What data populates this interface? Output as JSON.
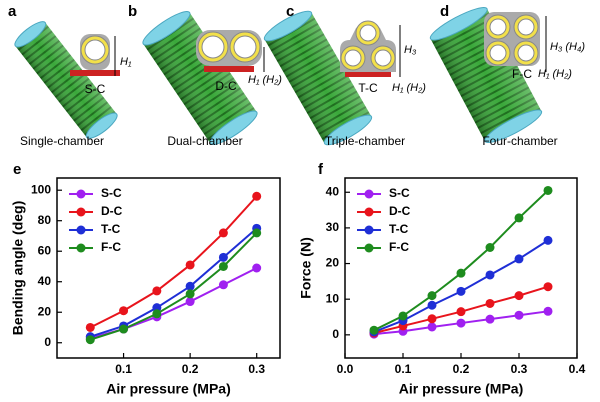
{
  "panels": [
    {
      "letter": "a",
      "label": "S-C",
      "heights": [
        "H₁"
      ],
      "caption": "Single-chamber"
    },
    {
      "letter": "b",
      "label": "D-C",
      "heights": [
        "H₁ (H₂)"
      ],
      "caption": "Dual-chamber"
    },
    {
      "letter": "c",
      "label": "T-C",
      "heights": [
        "H₃",
        "H₁ (H₂)"
      ],
      "caption": "Triple-chamber"
    },
    {
      "letter": "d",
      "label": "F-C",
      "heights": [
        "H₃ (H₄)",
        "H₁ (H₂)"
      ],
      "caption": "Four-chamber"
    }
  ],
  "chart_data": [
    {
      "type": "line",
      "panel": "e",
      "xlabel": "Air pressure (MPa)",
      "ylabel": "Bending angle (deg)",
      "x": [
        0.05,
        0.1,
        0.15,
        0.2,
        0.25,
        0.3
      ],
      "xlim": [
        0,
        0.335
      ],
      "xticks": [
        0.1,
        0.2,
        0.3
      ],
      "ylim": [
        -10,
        108
      ],
      "yticks": [
        0,
        20,
        40,
        60,
        80,
        100
      ],
      "legend": "upper left",
      "series": [
        {
          "name": "S-C",
          "color": "#a020f0",
          "values": [
            3,
            9,
            17,
            27,
            38,
            49
          ]
        },
        {
          "name": "D-C",
          "color": "#e8141c",
          "values": [
            10,
            21,
            34,
            51,
            72,
            96
          ]
        },
        {
          "name": "T-C",
          "color": "#1f2fd6",
          "values": [
            4,
            11,
            23,
            37,
            56,
            75
          ]
        },
        {
          "name": "F-C",
          "color": "#1e8c1e",
          "values": [
            2,
            9,
            19,
            32,
            50,
            72
          ]
        }
      ]
    },
    {
      "type": "line",
      "panel": "f",
      "xlabel": "Air pressure (MPa)",
      "ylabel": "Force (N)",
      "x": [
        0.05,
        0.1,
        0.15,
        0.2,
        0.25,
        0.3,
        0.35
      ],
      "xlim": [
        0,
        0.4
      ],
      "xticks": [
        {
          "value": 0,
          "label": "0.0"
        },
        0.1,
        0.2,
        0.3,
        0.4
      ],
      "ylim": [
        -6.5,
        44
      ],
      "yticks": [
        0,
        10,
        20,
        30,
        40
      ],
      "legend": "upper left",
      "series": [
        {
          "name": "S-C",
          "color": "#a020f0",
          "values": [
            0.2,
            1.0,
            2.2,
            3.3,
            4.4,
            5.5,
            6.6
          ]
        },
        {
          "name": "D-C",
          "color": "#e8141c",
          "values": [
            0.5,
            2.5,
            4.5,
            6.5,
            8.8,
            11,
            13.5
          ]
        },
        {
          "name": "T-C",
          "color": "#1f2fd6",
          "values": [
            0.8,
            4,
            8.3,
            12.2,
            16.8,
            21.3,
            26.5
          ]
        },
        {
          "name": "F-C",
          "color": "#1e8c1e",
          "values": [
            1.3,
            5.3,
            11,
            17.3,
            24.5,
            32.8,
            40.5
          ]
        }
      ]
    }
  ]
}
